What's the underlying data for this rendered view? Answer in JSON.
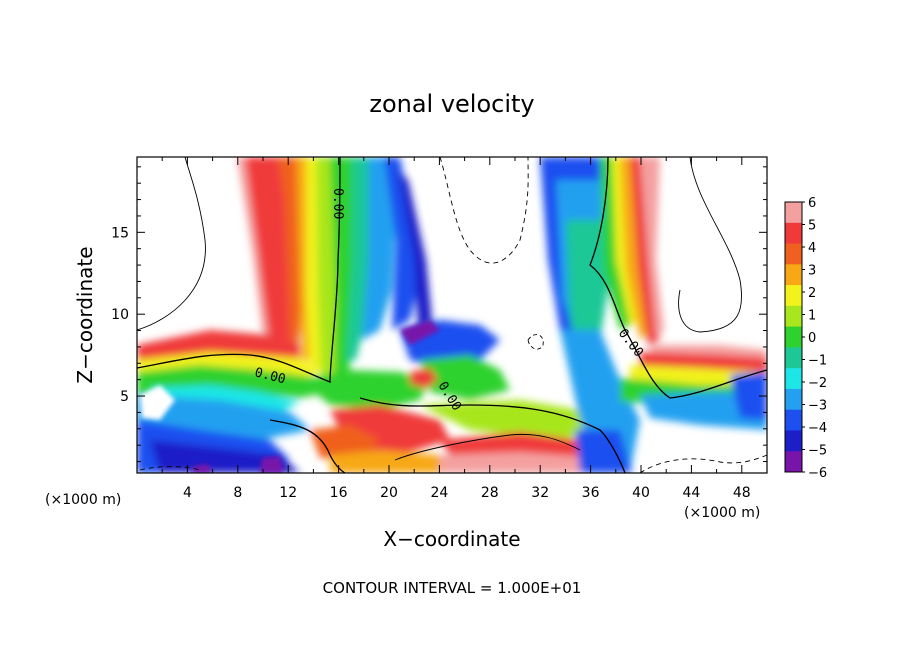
{
  "chart_data": {
    "type": "heatmap",
    "title": "zonal velocity",
    "xlabel": "X−coordinate",
    "ylabel": "Z−coordinate",
    "x_unit_left": "(×1000 m)",
    "x_unit_right": "(×1000 m)",
    "xlim": [
      0,
      50
    ],
    "ylim": [
      0.3,
      19.6
    ],
    "xticks": [
      "4",
      "8",
      "12",
      "16",
      "20",
      "24",
      "28",
      "32",
      "36",
      "40",
      "44",
      "48"
    ],
    "yticks": [
      "5",
      "10",
      "15"
    ],
    "colorbar": {
      "levels": [
        "6",
        "5",
        "4",
        "3",
        "2",
        "1",
        "0",
        "−1",
        "−2",
        "−3",
        "−4",
        "−5",
        "−6"
      ],
      "colors": [
        "#f4a0a0",
        "#f03a3a",
        "#f0601e",
        "#f7a814",
        "#f2f21c",
        "#a8e61e",
        "#2ed22e",
        "#1ec896",
        "#1ee6e6",
        "#24a0f0",
        "#1e50f0",
        "#1e1ec8",
        "#7814aa"
      ]
    },
    "contour_labels": [
      "0.00",
      "0.00",
      "0.00",
      "0.00"
    ],
    "footer": "CONTOUR INTERVAL = 1.000E+01"
  }
}
